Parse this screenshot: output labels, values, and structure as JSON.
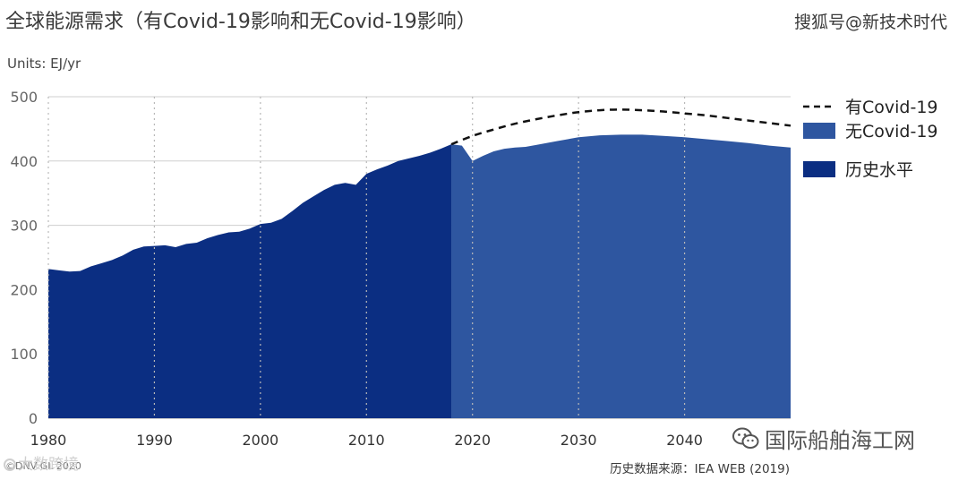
{
  "title": "全球能源需求（有Covid-19影响和无Covid-19影响）",
  "source_top": "搜狐号@新技术时代",
  "units_label": "Units: EJ/yr",
  "footer_left": "©DNV GL 2020",
  "footer_right": "历史数据来源：IEA WEB (2019)",
  "watermark_right": "国际船舶海工网",
  "watermark_left": "大数跨境",
  "colors": {
    "historical": "#0b2e82",
    "no_covid": "#2e56a0",
    "with_covid_line": "#111111",
    "grid": "#cfcfcf",
    "vgrid": "#b8b8b8",
    "axis_text": "#444444"
  },
  "chart_data": {
    "type": "area",
    "title": "全球能源需求（有Covid-19影响和无Covid-19影响）",
    "ylabel": "Units: EJ/yr",
    "xlim": [
      1980,
      2050
    ],
    "ylim": [
      0,
      500
    ],
    "xticks": [
      1980,
      1990,
      2000,
      2010,
      2020,
      2030,
      2040
    ],
    "yticks": [
      0,
      100,
      200,
      300,
      400,
      500
    ],
    "legend": [
      {
        "key": "with_covid",
        "label": "有Covid-19",
        "style": "dashed-line"
      },
      {
        "key": "no_covid",
        "label": "无Covid-19",
        "style": "area"
      },
      {
        "key": "historical",
        "label": "历史水平",
        "style": "area"
      }
    ],
    "series": [
      {
        "name": "历史水平",
        "key": "historical",
        "x": [
          1980,
          1981,
          1982,
          1983,
          1984,
          1985,
          1986,
          1987,
          1988,
          1989,
          1990,
          1991,
          1992,
          1993,
          1994,
          1995,
          1996,
          1997,
          1998,
          1999,
          2000,
          2001,
          2002,
          2003,
          2004,
          2005,
          2006,
          2007,
          2008,
          2009,
          2010,
          2011,
          2012,
          2013,
          2014,
          2015,
          2016,
          2017,
          2018
        ],
        "values": [
          232,
          230,
          228,
          229,
          236,
          241,
          246,
          253,
          262,
          267,
          268,
          269,
          266,
          271,
          273,
          280,
          285,
          289,
          290,
          295,
          302,
          304,
          310,
          322,
          335,
          345,
          355,
          363,
          366,
          363,
          380,
          387,
          393,
          400,
          404,
          408,
          413,
          419,
          426
        ]
      },
      {
        "name": "无Covid-19",
        "key": "no_covid",
        "x": [
          2018,
          2019,
          2020,
          2021,
          2022,
          2023,
          2024,
          2025,
          2026,
          2028,
          2030,
          2032,
          2034,
          2036,
          2038,
          2040,
          2042,
          2044,
          2046,
          2048,
          2050
        ],
        "values": [
          426,
          424,
          400,
          408,
          415,
          419,
          421,
          422,
          425,
          431,
          437,
          440,
          441,
          441,
          439,
          437,
          434,
          431,
          428,
          424,
          421
        ]
      },
      {
        "name": "有Covid-19",
        "key": "with_covid",
        "x": [
          2018,
          2020,
          2022,
          2024,
          2026,
          2028,
          2030,
          2032,
          2034,
          2036,
          2038,
          2040,
          2042,
          2044,
          2046,
          2048,
          2050
        ],
        "values": [
          426,
          439,
          449,
          458,
          465,
          471,
          476,
          479,
          480,
          479,
          477,
          474,
          471,
          467,
          463,
          459,
          455
        ]
      }
    ]
  }
}
